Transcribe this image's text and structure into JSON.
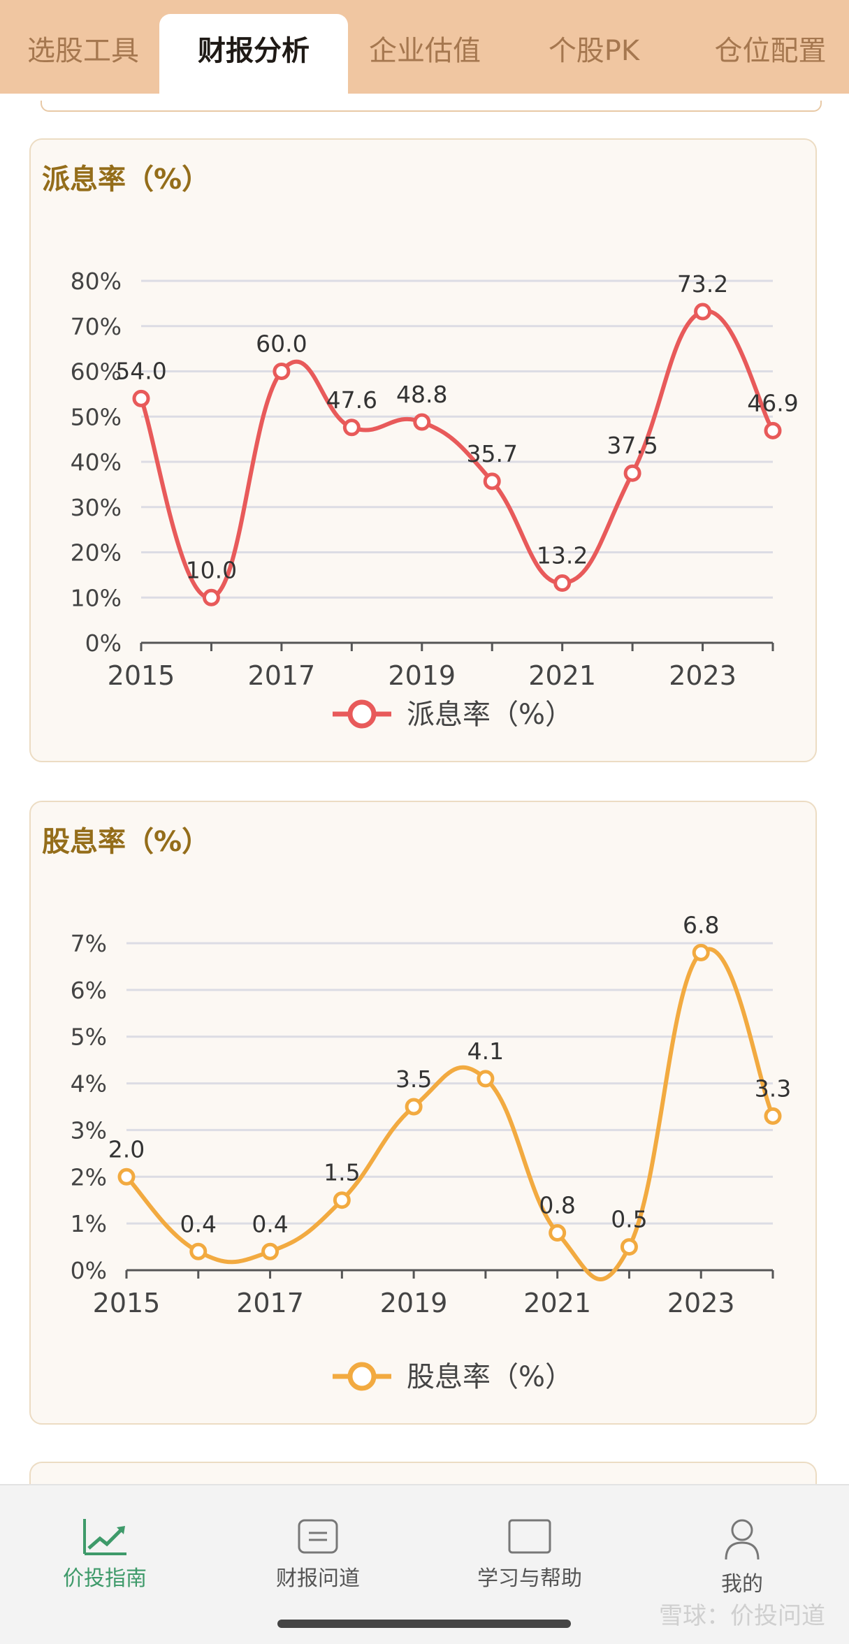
{
  "tabs": [
    {
      "label": "选股工具"
    },
    {
      "label": "财报分析"
    },
    {
      "label": "企业估值"
    },
    {
      "label": "个股PK"
    },
    {
      "label": "仓位配置"
    }
  ],
  "colors": {
    "payout_line": "#e85a5a",
    "yield_line": "#f2aa40",
    "tab_bar": "#f0c6a1",
    "card_title": "#946d1a",
    "nav_active": "#3e9a6a"
  },
  "chart_data": [
    {
      "type": "line",
      "title": "派息率（%）",
      "legend": "派息率（%）",
      "x": [
        2015,
        2016,
        2017,
        2018,
        2019,
        2020,
        2021,
        2022,
        2023,
        2024
      ],
      "values": [
        54.0,
        10.0,
        60.0,
        47.6,
        48.8,
        35.7,
        13.2,
        37.5,
        73.2,
        46.9
      ],
      "labels": [
        "54.0",
        "10.0",
        "60.0",
        "47.6",
        "48.8",
        "35.7",
        "13.2",
        "37.5",
        "73.2",
        "46.9"
      ],
      "xticks": [
        "2015",
        "2017",
        "2019",
        "2021",
        "2023"
      ],
      "yticks": [
        "0%",
        "10%",
        "20%",
        "30%",
        "40%",
        "50%",
        "60%",
        "70%",
        "80%"
      ],
      "ylim": [
        0,
        80
      ],
      "color": "#e85a5a"
    },
    {
      "type": "line",
      "title": "股息率（%）",
      "legend": "股息率（%）",
      "x": [
        2015,
        2016,
        2017,
        2018,
        2019,
        2020,
        2021,
        2022,
        2023,
        2024
      ],
      "values": [
        2.0,
        0.4,
        0.4,
        1.5,
        3.5,
        4.1,
        0.8,
        0.5,
        6.8,
        3.3
      ],
      "labels": [
        "2.0",
        "0.4",
        "0.4",
        "1.5",
        "3.5",
        "4.1",
        "0.8",
        "0.5",
        "6.8",
        "3.3"
      ],
      "xticks": [
        "2015",
        "2017",
        "2019",
        "2021",
        "2023"
      ],
      "yticks": [
        "0%",
        "1%",
        "2%",
        "3%",
        "4%",
        "5%",
        "6%",
        "7%"
      ],
      "ylim": [
        0,
        7
      ],
      "color": "#f2aa40"
    }
  ],
  "nav": [
    {
      "label": "价投指南",
      "icon": "chart-trend-icon"
    },
    {
      "label": "财报问道",
      "icon": "document-icon"
    },
    {
      "label": "学习与帮助",
      "icon": "book-icon"
    },
    {
      "label": "我的",
      "icon": "user-icon"
    }
  ],
  "watermark": "雪球：价投问道"
}
